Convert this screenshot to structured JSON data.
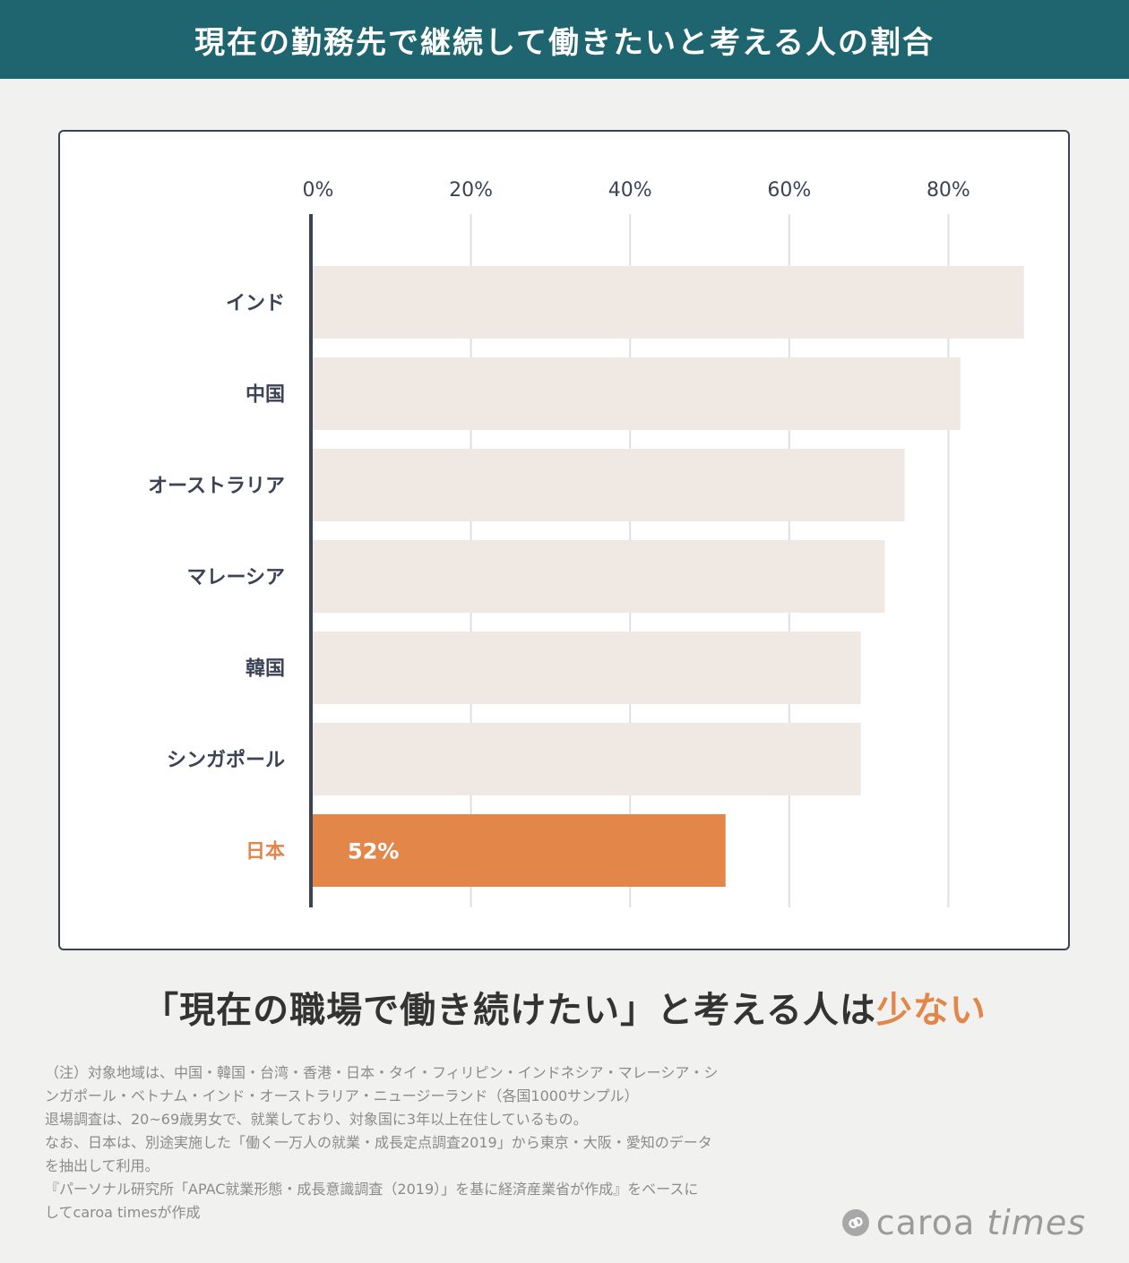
{
  "header": {
    "title": "現在の勤務先で継続して働きたいと考える人の割合"
  },
  "chart_data": {
    "type": "bar",
    "orientation": "horizontal",
    "title": "",
    "xlabel": "",
    "ylabel": "",
    "xlim": [
      0,
      90
    ],
    "x_ticks": [
      "0%",
      "20%",
      "40%",
      "60%",
      "80%"
    ],
    "x_tick_values": [
      0,
      20,
      40,
      60,
      80
    ],
    "grid": true,
    "categories": [
      "インド",
      "中国",
      "オーストラリア",
      "マレーシア",
      "韓国",
      "シンガポール",
      "日本"
    ],
    "values": [
      89.5,
      81.5,
      74.5,
      72,
      69,
      69,
      52
    ],
    "highlight_index": 6,
    "data_labels": {
      "6": "52%"
    },
    "colors": {
      "bar": "#f0e8e2",
      "highlight": "#e2864a",
      "axis": "#3d4356",
      "grid": "#dcdfe6"
    }
  },
  "headline": {
    "pre": "「現在の職場で働き続けたい」と考える人は",
    "accent": "少ない"
  },
  "notes": [
    "（注）対象地域は、中国・韓国・台湾・香港・日本・タイ・フィリピン・インドネシア・マレーシア・シ",
    "ンガポール・ベトナム・インド・オーストラリア・ニュージーランド（各国1000サンプル）",
    "退場調査は、20~69歳男女で、就業しており、対象国に3年以上在住しているもの。",
    "なお、日本は、別途実施した「働く一万人の就業・成長定点調査2019」から東京・大阪・愛知のデータ",
    "を抽出して利用。",
    "『パーソナル研究所「APAC就業形態・成長意識調査（2019）」を基に経済産業省が作成』をベースに",
    "してcaroa timesが作成"
  ],
  "logo": {
    "icon": "link-icon",
    "word1": "caroa",
    "word2": "times"
  }
}
